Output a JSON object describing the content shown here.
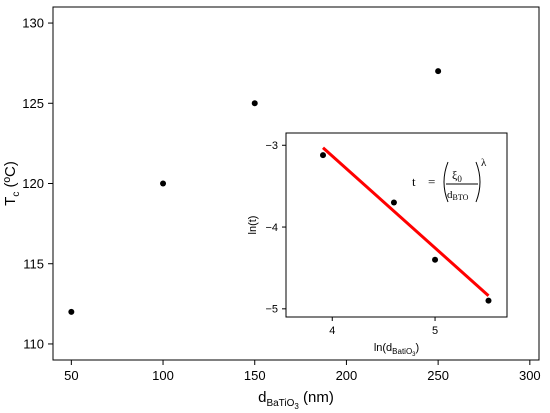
{
  "chart_data": [
    {
      "type": "scatter",
      "xlabel": {
        "main": "d",
        "sub": "BaTiO",
        "subsub": "3",
        "unit": " (nm)"
      },
      "ylabel": {
        "main": "T",
        "sub": "c",
        "unit": " (ºC)"
      },
      "xlim": [
        40,
        305
      ],
      "ylim": [
        109,
        131
      ],
      "xticks": [
        50,
        100,
        150,
        200,
        250,
        300
      ],
      "yticks": [
        110,
        115,
        120,
        125,
        130
      ],
      "series": [
        {
          "points": [
            [
              50,
              112
            ],
            [
              100,
              120
            ],
            [
              150,
              125
            ],
            [
              250,
              127
            ]
          ],
          "color": "#000000"
        }
      ]
    },
    {
      "type": "scatter",
      "xlabel": {
        "main": "ln(d",
        "sub": "BatiO",
        "subsub": "3",
        "unit": ")"
      },
      "ylabel": "ln(t)",
      "xlim": [
        3.55,
        5.7
      ],
      "ylim": [
        -5.1,
        -2.85
      ],
      "xticks": [
        4,
        5
      ],
      "yticks": [
        -3,
        -4,
        -5
      ],
      "series": [
        {
          "points": [
            [
              3.91,
              -3.12
            ],
            [
              4.6,
              -3.7
            ],
            [
              5.0,
              -4.4
            ],
            [
              5.52,
              -4.9
            ]
          ],
          "color": "#000000"
        }
      ],
      "fit_line": {
        "x": [
          3.91,
          5.52
        ],
        "y": [
          -3.03,
          -4.84
        ],
        "color": "#ff0000"
      },
      "annotation": {
        "lhs": "t",
        "eq": "=",
        "numerator": "ξ",
        "numerator_sub": "0",
        "denominator": "d",
        "denominator_sub": "BTO",
        "exponent": "λ"
      }
    }
  ]
}
